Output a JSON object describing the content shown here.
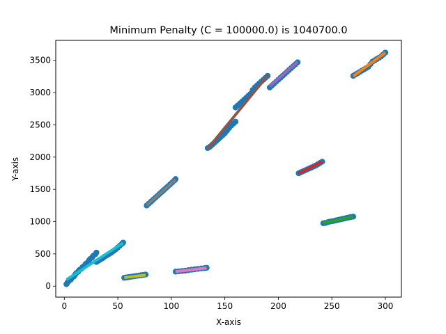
{
  "chart_data": {
    "type": "scatter",
    "title": "Minimum Penalty (C = 100000.0) is 1040700.0",
    "xlabel": "X-axis",
    "ylabel": "Y-axis",
    "xlim": [
      -8,
      315
    ],
    "ylim": [
      -170,
      3810
    ],
    "xticks": [
      0,
      50,
      100,
      150,
      200,
      250,
      300
    ],
    "yticks": [
      0,
      500,
      1000,
      1500,
      2000,
      2500,
      3000,
      3500
    ],
    "grid": false,
    "point_color": "#1f77b4",
    "points": [
      [
        2,
        30
      ],
      [
        3,
        55
      ],
      [
        4,
        75
      ],
      [
        6,
        100
      ],
      [
        7,
        125
      ],
      [
        9,
        150
      ],
      [
        10,
        175
      ],
      [
        11,
        200
      ],
      [
        13,
        225
      ],
      [
        14,
        250
      ],
      [
        16,
        270
      ],
      [
        17,
        295
      ],
      [
        19,
        320
      ],
      [
        20,
        345
      ],
      [
        22,
        370
      ],
      [
        23,
        395
      ],
      [
        24,
        420
      ],
      [
        26,
        445
      ],
      [
        27,
        470
      ],
      [
        29,
        495
      ],
      [
        30,
        520
      ],
      [
        30,
        375
      ],
      [
        32,
        395
      ],
      [
        34,
        415
      ],
      [
        36,
        435
      ],
      [
        38,
        460
      ],
      [
        40,
        480
      ],
      [
        42,
        500
      ],
      [
        44,
        520
      ],
      [
        46,
        545
      ],
      [
        48,
        570
      ],
      [
        50,
        600
      ],
      [
        52,
        630
      ],
      [
        54,
        660
      ],
      [
        55,
        675
      ],
      [
        56,
        130
      ],
      [
        58,
        135
      ],
      [
        60,
        140
      ],
      [
        62,
        145
      ],
      [
        64,
        150
      ],
      [
        66,
        155
      ],
      [
        68,
        160
      ],
      [
        70,
        165
      ],
      [
        72,
        170
      ],
      [
        74,
        175
      ],
      [
        76,
        180
      ],
      [
        77,
        1250
      ],
      [
        79,
        1280
      ],
      [
        81,
        1310
      ],
      [
        83,
        1340
      ],
      [
        85,
        1370
      ],
      [
        87,
        1400
      ],
      [
        89,
        1430
      ],
      [
        91,
        1460
      ],
      [
        93,
        1490
      ],
      [
        95,
        1520
      ],
      [
        97,
        1550
      ],
      [
        99,
        1580
      ],
      [
        101,
        1610
      ],
      [
        103,
        1640
      ],
      [
        104,
        1660
      ],
      [
        104,
        225
      ],
      [
        107,
        230
      ],
      [
        110,
        235
      ],
      [
        113,
        240
      ],
      [
        116,
        248
      ],
      [
        119,
        255
      ],
      [
        122,
        262
      ],
      [
        125,
        268
      ],
      [
        128,
        274
      ],
      [
        131,
        280
      ],
      [
        133,
        285
      ],
      [
        134,
        2140
      ],
      [
        136,
        2160
      ],
      [
        138,
        2190
      ],
      [
        140,
        2220
      ],
      [
        142,
        2250
      ],
      [
        144,
        2280
      ],
      [
        146,
        2310
      ],
      [
        148,
        2340
      ],
      [
        150,
        2370
      ],
      [
        152,
        2410
      ],
      [
        154,
        2450
      ],
      [
        156,
        2490
      ],
      [
        158,
        2520
      ],
      [
        160,
        2550
      ],
      [
        160,
        2770
      ],
      [
        162,
        2800
      ],
      [
        164,
        2830
      ],
      [
        166,
        2860
      ],
      [
        168,
        2890
      ],
      [
        170,
        2920
      ],
      [
        172,
        2950
      ],
      [
        174,
        2980
      ],
      [
        176,
        3040
      ],
      [
        178,
        3080
      ],
      [
        180,
        3110
      ],
      [
        182,
        3140
      ],
      [
        184,
        3170
      ],
      [
        186,
        3200
      ],
      [
        188,
        3230
      ],
      [
        190,
        3260
      ],
      [
        192,
        3080
      ],
      [
        194,
        3110
      ],
      [
        196,
        3140
      ],
      [
        198,
        3170
      ],
      [
        200,
        3200
      ],
      [
        202,
        3230
      ],
      [
        204,
        3260
      ],
      [
        206,
        3290
      ],
      [
        208,
        3320
      ],
      [
        210,
        3350
      ],
      [
        212,
        3380
      ],
      [
        214,
        3410
      ],
      [
        216,
        3440
      ],
      [
        218,
        3470
      ],
      [
        219,
        1750
      ],
      [
        221,
        1765
      ],
      [
        223,
        1780
      ],
      [
        225,
        1795
      ],
      [
        227,
        1810
      ],
      [
        229,
        1825
      ],
      [
        231,
        1840
      ],
      [
        233,
        1855
      ],
      [
        235,
        1870
      ],
      [
        237,
        1890
      ],
      [
        239,
        1910
      ],
      [
        241,
        1930
      ],
      [
        242,
        975
      ],
      [
        244,
        980
      ],
      [
        246,
        990
      ],
      [
        248,
        1000
      ],
      [
        250,
        1005
      ],
      [
        252,
        1012
      ],
      [
        254,
        1020
      ],
      [
        256,
        1028
      ],
      [
        258,
        1035
      ],
      [
        260,
        1042
      ],
      [
        262,
        1050
      ],
      [
        264,
        1058
      ],
      [
        266,
        1065
      ],
      [
        268,
        1072
      ],
      [
        270,
        1078
      ],
      [
        270,
        3260
      ],
      [
        272,
        3280
      ],
      [
        274,
        3300
      ],
      [
        276,
        3320
      ],
      [
        278,
        3340
      ],
      [
        280,
        3360
      ],
      [
        282,
        3380
      ],
      [
        284,
        3400
      ],
      [
        286,
        3440
      ],
      [
        288,
        3480
      ],
      [
        290,
        3500
      ],
      [
        292,
        3520
      ],
      [
        294,
        3540
      ],
      [
        296,
        3560
      ],
      [
        298,
        3590
      ],
      [
        300,
        3620
      ]
    ],
    "segments": [
      {
        "color": "#17becf",
        "x": [
          2,
          55
        ],
        "y": [
          100,
          670
        ]
      },
      {
        "color": "#bcbd22",
        "x": [
          56,
          76
        ],
        "y": [
          132,
          172
        ]
      },
      {
        "color": "#7f7f7f",
        "x": [
          77,
          104
        ],
        "y": [
          1255,
          1650
        ]
      },
      {
        "color": "#e377c2",
        "x": [
          104,
          133
        ],
        "y": [
          225,
          282
        ]
      },
      {
        "color": "#8c564b",
        "x": [
          134,
          190
        ],
        "y": [
          2130,
          3265
        ]
      },
      {
        "color": "#9467bd",
        "x": [
          192,
          218
        ],
        "y": [
          3100,
          3475
        ]
      },
      {
        "color": "#d62728",
        "x": [
          219,
          241
        ],
        "y": [
          1745,
          1930
        ]
      },
      {
        "color": "#2ca02c",
        "x": [
          242,
          270
        ],
        "y": [
          980,
          1075
        ]
      },
      {
        "color": "#ff7f0e",
        "x": [
          270,
          300
        ],
        "y": [
          3255,
          3620
        ]
      }
    ]
  }
}
